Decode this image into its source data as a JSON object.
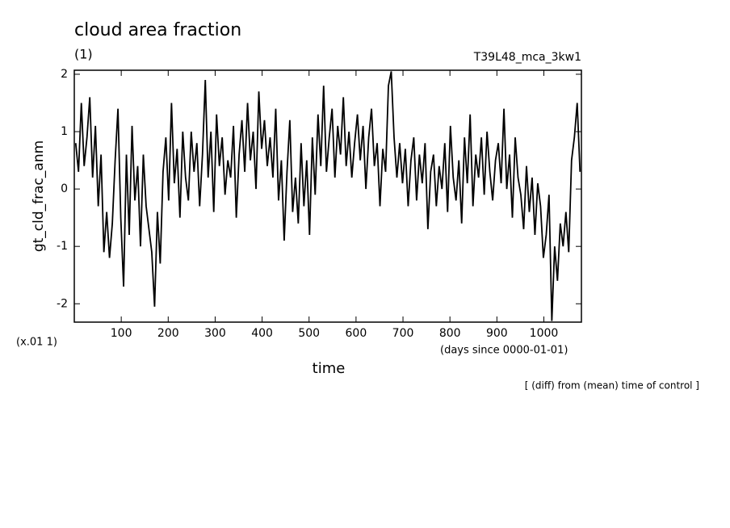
{
  "chart_data": {
    "type": "line",
    "title": "cloud area fraction",
    "subtitle": "(1)",
    "run_label": "T39L48_mca_3kw1",
    "ylabel": "gt_cld_frac_anm",
    "xlabel": "time",
    "x_units": "(days since 0000-01-01)",
    "y_scale_note": "(x.01 1)",
    "footnote": "[ (diff) from (mean) time of control ]",
    "xlim": [
      0,
      1080
    ],
    "ylim": [
      -2.32,
      2.07
    ],
    "xticks": [
      100,
      200,
      300,
      400,
      500,
      600,
      700,
      800,
      900,
      1000
    ],
    "yticks": [
      -2,
      -1,
      0,
      1,
      2
    ],
    "series": [
      {
        "color": "#000000",
        "x": [
          3,
          9,
          15,
          21,
          27,
          33,
          39,
          45,
          51,
          57,
          63,
          69,
          75,
          81,
          87,
          93,
          99,
          105,
          111,
          117,
          123,
          129,
          135,
          141,
          147,
          153,
          159,
          165,
          171,
          177,
          183,
          189,
          195,
          201,
          207,
          213,
          219,
          225,
          231,
          237,
          243,
          249,
          255,
          261,
          267,
          273,
          279,
          285,
          291,
          297,
          303,
          309,
          315,
          321,
          327,
          333,
          339,
          345,
          351,
          357,
          363,
          369,
          375,
          381,
          387,
          393,
          399,
          405,
          411,
          417,
          423,
          429,
          435,
          441,
          447,
          453,
          459,
          465,
          471,
          477,
          483,
          489,
          495,
          501,
          507,
          513,
          519,
          525,
          531,
          537,
          543,
          549,
          555,
          561,
          567,
          573,
          579,
          585,
          591,
          597,
          603,
          609,
          615,
          621,
          627,
          633,
          639,
          645,
          651,
          657,
          663,
          669,
          675,
          681,
          687,
          693,
          699,
          705,
          711,
          717,
          723,
          729,
          735,
          741,
          747,
          753,
          759,
          765,
          771,
          777,
          783,
          789,
          795,
          801,
          807,
          813,
          819,
          825,
          831,
          837,
          843,
          849,
          855,
          861,
          867,
          873,
          879,
          885,
          891,
          897,
          903,
          909,
          915,
          921,
          927,
          933,
          939,
          945,
          951,
          957,
          963,
          969,
          975,
          981,
          987,
          993,
          999,
          1005,
          1011,
          1017,
          1023,
          1029,
          1035,
          1041,
          1047,
          1053,
          1059,
          1065,
          1071,
          1077
        ],
        "values": [
          0.8,
          0.3,
          1.5,
          0.4,
          0.9,
          1.6,
          0.2,
          1.1,
          -0.3,
          0.6,
          -1.1,
          -0.4,
          -1.2,
          -0.6,
          0.5,
          1.4,
          -0.5,
          -1.7,
          0.6,
          -0.8,
          1.1,
          -0.2,
          0.4,
          -1.0,
          0.6,
          -0.3,
          -0.7,
          -1.1,
          -2.05,
          -0.4,
          -1.3,
          0.3,
          0.9,
          -0.2,
          1.5,
          0.1,
          0.7,
          -0.5,
          1.0,
          0.2,
          -0.2,
          1.0,
          0.3,
          0.8,
          -0.3,
          0.6,
          1.9,
          0.2,
          1.0,
          -0.4,
          1.3,
          0.4,
          0.9,
          -0.1,
          0.5,
          0.2,
          1.1,
          -0.5,
          0.6,
          1.2,
          0.3,
          1.5,
          0.5,
          1.0,
          0.0,
          1.7,
          0.7,
          1.2,
          0.4,
          0.9,
          0.2,
          1.4,
          -0.2,
          0.5,
          -0.9,
          0.3,
          1.2,
          -0.4,
          0.2,
          -0.6,
          0.8,
          -0.3,
          0.5,
          -0.8,
          0.9,
          -0.1,
          1.3,
          0.4,
          1.8,
          0.3,
          0.9,
          1.4,
          0.2,
          1.1,
          0.6,
          1.6,
          0.4,
          1.0,
          0.2,
          0.8,
          1.3,
          0.5,
          1.1,
          0.0,
          0.9,
          1.4,
          0.4,
          0.8,
          -0.3,
          0.7,
          0.3,
          1.8,
          2.05,
          0.9,
          0.2,
          0.8,
          0.1,
          0.7,
          -0.3,
          0.5,
          0.9,
          -0.2,
          0.6,
          0.1,
          0.8,
          -0.7,
          0.3,
          0.6,
          -0.3,
          0.4,
          0.0,
          0.8,
          -0.4,
          1.1,
          0.2,
          -0.2,
          0.5,
          -0.6,
          0.9,
          0.1,
          1.3,
          -0.3,
          0.6,
          0.2,
          0.9,
          -0.1,
          1.0,
          0.3,
          -0.2,
          0.5,
          0.8,
          0.1,
          1.4,
          0.0,
          0.6,
          -0.5,
          0.9,
          0.2,
          -0.1,
          -0.7,
          0.4,
          -0.4,
          0.2,
          -0.8,
          0.1,
          -0.3,
          -1.2,
          -0.8,
          -0.1,
          -2.3,
          -1.0,
          -1.6,
          -0.6,
          -1.0,
          -0.4,
          -1.1,
          0.5,
          0.9,
          1.5,
          0.3
        ]
      }
    ]
  }
}
